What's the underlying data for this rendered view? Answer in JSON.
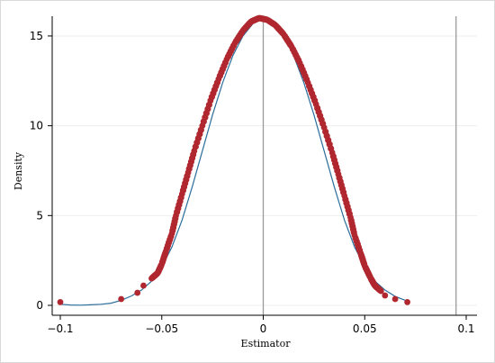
{
  "chart_data": {
    "type": "scatter",
    "title": "",
    "xlabel": "Estimator",
    "ylabel": "Density",
    "xlim": [
      -0.1,
      0.1
    ],
    "ylim": [
      0,
      16
    ],
    "x_ticks": [
      -0.1,
      -0.05,
      0,
      0.05,
      0.1
    ],
    "x_tick_labels": [
      "−0.1",
      "−0.05",
      "0",
      "0.05",
      "0.1"
    ],
    "y_ticks": [
      0,
      5,
      10,
      15
    ],
    "y_tick_labels": [
      "0",
      "5",
      "10",
      "15"
    ],
    "grid": true,
    "reference_lines_x": [
      0,
      0.095
    ],
    "series": [
      {
        "kind": "points",
        "color": "#b0272f",
        "points": [
          [
            -0.1,
            0.18
          ],
          [
            -0.07,
            0.35
          ],
          [
            -0.062,
            0.7
          ],
          [
            -0.059,
            1.1
          ],
          [
            -0.055,
            1.5
          ],
          [
            -0.052,
            1.8
          ],
          [
            -0.05,
            2.3
          ],
          [
            -0.048,
            3.0
          ],
          [
            -0.045,
            4.0
          ],
          [
            -0.043,
            5.0
          ],
          [
            -0.04,
            6.2
          ],
          [
            -0.037,
            7.4
          ],
          [
            -0.034,
            8.6
          ],
          [
            -0.03,
            10.0
          ],
          [
            -0.026,
            11.4
          ],
          [
            -0.022,
            12.6
          ],
          [
            -0.018,
            13.7
          ],
          [
            -0.014,
            14.6
          ],
          [
            -0.01,
            15.3
          ],
          [
            -0.006,
            15.8
          ],
          [
            -0.002,
            16.0
          ],
          [
            0.002,
            15.9
          ],
          [
            0.006,
            15.6
          ],
          [
            0.01,
            15.1
          ],
          [
            0.014,
            14.4
          ],
          [
            0.018,
            13.5
          ],
          [
            0.022,
            12.4
          ],
          [
            0.026,
            11.2
          ],
          [
            0.03,
            9.9
          ],
          [
            0.034,
            8.5
          ],
          [
            0.037,
            7.3
          ],
          [
            0.04,
            6.1
          ],
          [
            0.043,
            4.9
          ],
          [
            0.045,
            3.9
          ],
          [
            0.048,
            2.9
          ],
          [
            0.05,
            2.2
          ],
          [
            0.053,
            1.5
          ],
          [
            0.055,
            1.1
          ],
          [
            0.058,
            0.8
          ],
          [
            0.06,
            0.55
          ],
          [
            0.065,
            0.35
          ],
          [
            0.071,
            0.18
          ]
        ]
      },
      {
        "kind": "line",
        "color": "#2c6e9b",
        "x": [
          -0.1,
          -0.095,
          -0.09,
          -0.085,
          -0.08,
          -0.075,
          -0.07,
          -0.065,
          -0.06,
          -0.055,
          -0.05,
          -0.045,
          -0.04,
          -0.035,
          -0.03,
          -0.025,
          -0.02,
          -0.015,
          -0.01,
          -0.005,
          0,
          0.005,
          0.01,
          0.015,
          0.02,
          0.025,
          0.03,
          0.035,
          0.04,
          0.045,
          0.05,
          0.055,
          0.06,
          0.065,
          0.07,
          0.072
        ],
        "y": [
          0.06,
          0.02,
          0.01,
          0.03,
          0.06,
          0.12,
          0.28,
          0.52,
          0.85,
          1.35,
          2.15,
          3.25,
          4.75,
          6.6,
          8.6,
          10.6,
          12.4,
          13.9,
          15.0,
          15.7,
          15.95,
          15.7,
          15.0,
          13.9,
          12.4,
          10.6,
          8.6,
          6.6,
          4.75,
          3.25,
          2.15,
          1.35,
          0.85,
          0.5,
          0.28,
          0.22
        ]
      }
    ]
  }
}
